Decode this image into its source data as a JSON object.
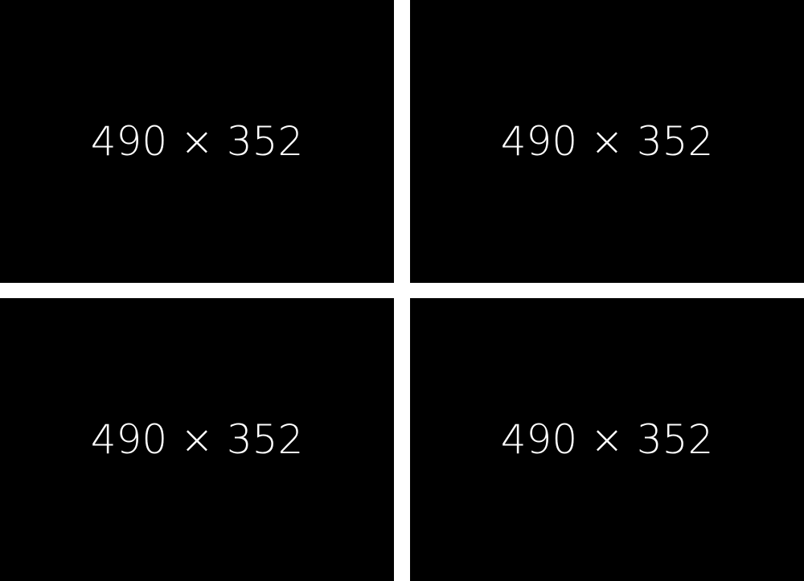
{
  "tiles": [
    {
      "label": "490 × 352"
    },
    {
      "label": "490 × 352"
    },
    {
      "label": "490 × 352"
    },
    {
      "label": "490 × 352"
    }
  ],
  "colors": {
    "tile_background": "#000000",
    "tile_text": "#ffffff",
    "gutter": "#ffffff"
  }
}
